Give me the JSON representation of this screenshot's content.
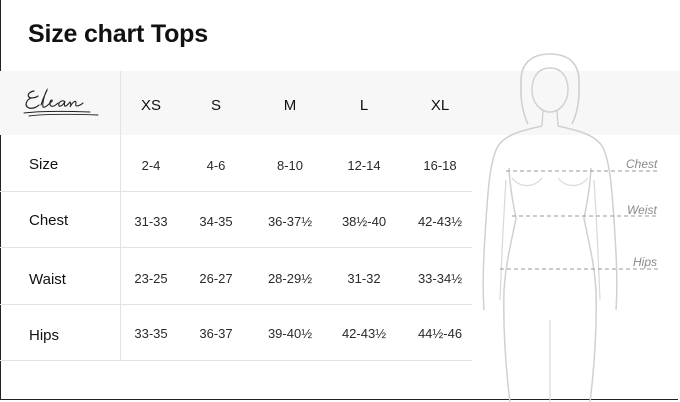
{
  "title": "Size chart Tops",
  "brand": "Elan",
  "columns": [
    "XS",
    "S",
    "M",
    "L",
    "XL"
  ],
  "rows": [
    {
      "label": "Size",
      "values": [
        "2-4",
        "4-6",
        "8-10",
        "12-14",
        "16-18"
      ]
    },
    {
      "label": "Chest",
      "values": [
        "31-33",
        "34-35",
        "36-37½",
        "38½-40",
        "42-43½"
      ]
    },
    {
      "label": "Waist",
      "values": [
        "23-25",
        "26-27",
        "28-29½",
        "31-32",
        "33-34½"
      ]
    },
    {
      "label": "Hips",
      "values": [
        "33-35",
        "36-37",
        "39-40½",
        "42-43½",
        "44½-46"
      ]
    }
  ],
  "measure_labels": {
    "chest": "Chest",
    "waist": "Weist",
    "hips": "Hips"
  }
}
